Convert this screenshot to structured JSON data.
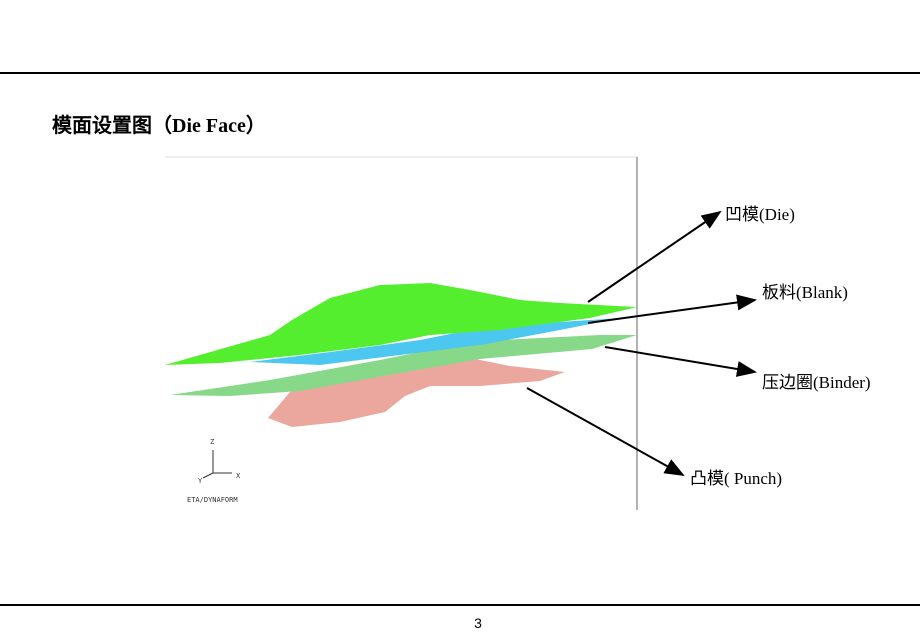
{
  "header": {
    "title": "模面设置图（Die Face）"
  },
  "figure": {
    "axes": {
      "z": "Z",
      "y": "Y",
      "x": "X"
    },
    "watermark": "ETA/DYNAFORM"
  },
  "callouts": [
    "凹模(Die)",
    "板料(Blank)",
    "压边圈(Binder)",
    "凸模( Punch)"
  ],
  "footer": {
    "page_number": "3"
  }
}
